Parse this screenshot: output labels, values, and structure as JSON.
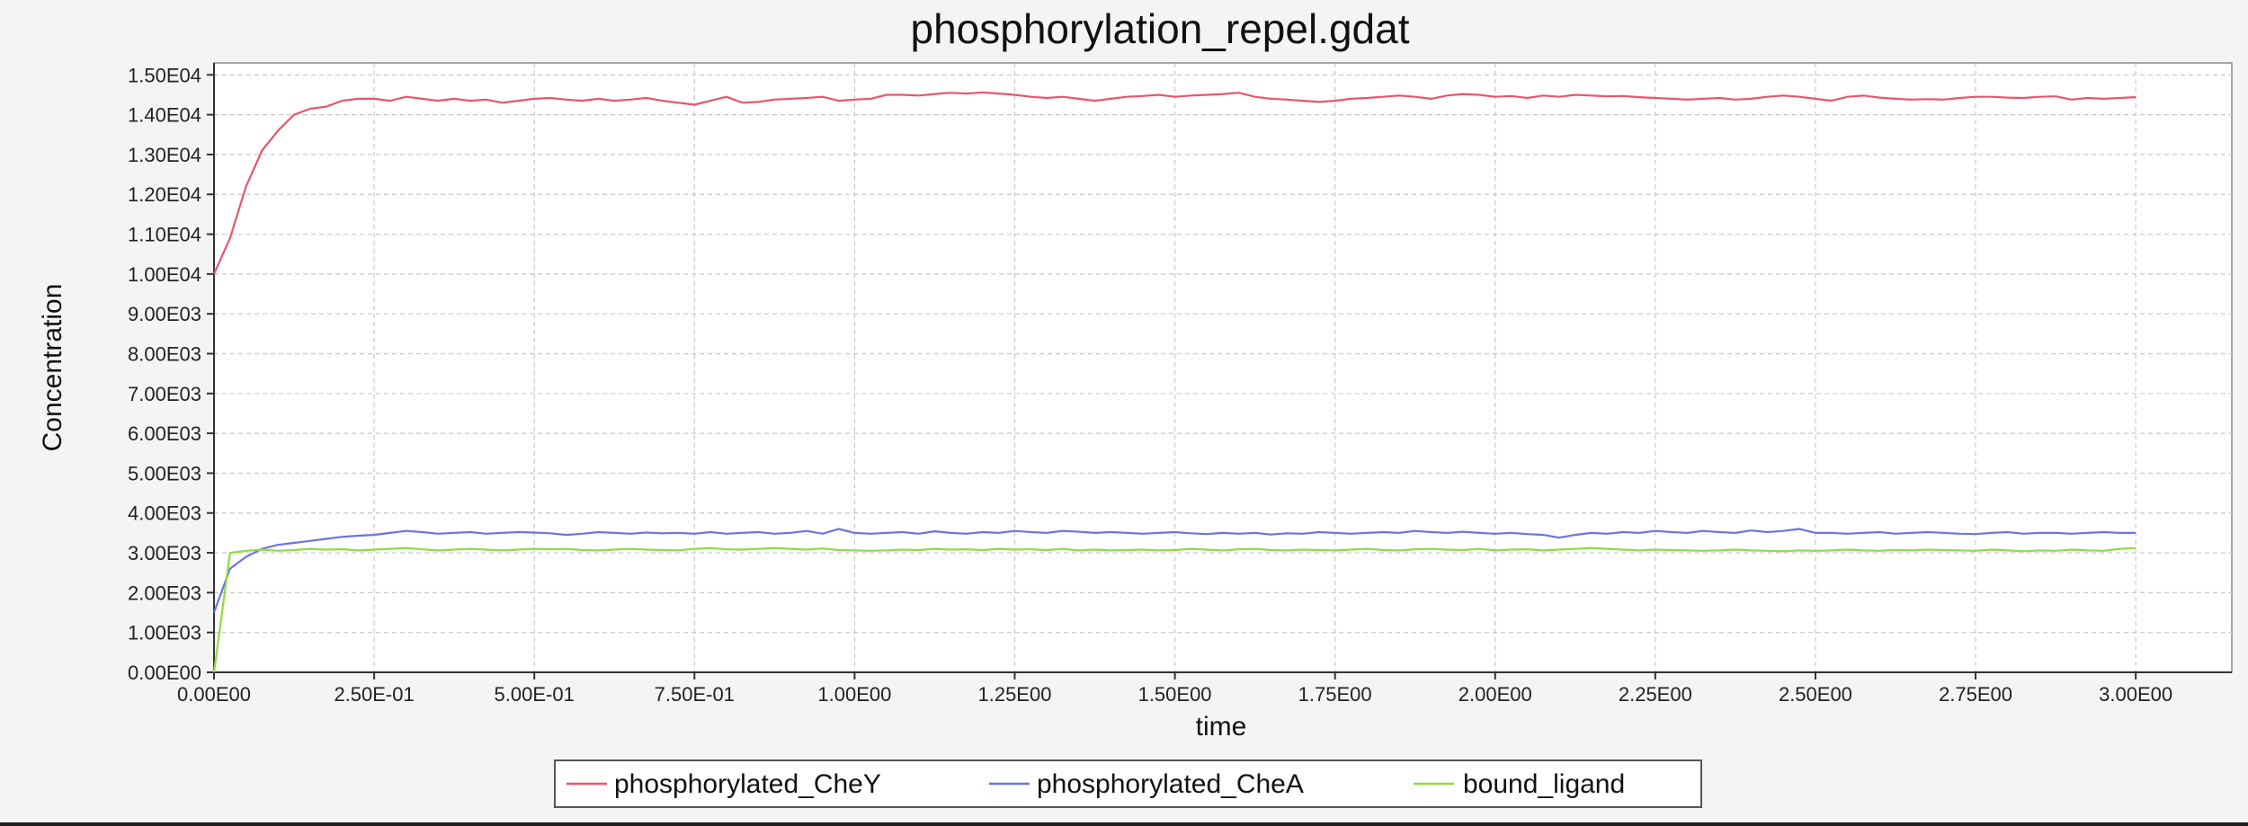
{
  "chart_data": {
    "type": "line",
    "title": "phosphorylation_repel.gdat",
    "xlabel": "time",
    "ylabel": "Concentration",
    "xlim": [
      0,
      3.15
    ],
    "ylim": [
      0,
      15300
    ],
    "grid": true,
    "legend_position": "bottom-center",
    "x_ticks": [
      0,
      0.25,
      0.5,
      0.75,
      1.0,
      1.25,
      1.5,
      1.75,
      2.0,
      2.25,
      2.5,
      2.75,
      3.0
    ],
    "x_tick_labels": [
      "0.00E00",
      "2.50E-01",
      "5.00E-01",
      "7.50E-01",
      "1.00E00",
      "1.25E00",
      "1.50E00",
      "1.75E00",
      "2.00E00",
      "2.25E00",
      "2.50E00",
      "2.75E00",
      "3.00E00"
    ],
    "y_ticks": [
      0,
      1000,
      2000,
      3000,
      4000,
      5000,
      6000,
      7000,
      8000,
      9000,
      10000,
      11000,
      12000,
      13000,
      14000,
      15000
    ],
    "y_tick_labels": [
      "0.00E00",
      "1.00E03",
      "2.00E03",
      "3.00E03",
      "4.00E03",
      "5.00E03",
      "6.00E03",
      "7.00E03",
      "8.00E03",
      "9.00E03",
      "1.00E04",
      "1.10E04",
      "1.20E04",
      "1.30E04",
      "1.40E04",
      "1.50E04"
    ],
    "x": [
      0,
      0.025,
      0.05,
      0.075,
      0.1,
      0.125,
      0.15,
      0.175,
      0.2,
      0.225,
      0.25,
      0.275,
      0.3,
      0.325,
      0.35,
      0.375,
      0.4,
      0.425,
      0.45,
      0.475,
      0.5,
      0.525,
      0.55,
      0.575,
      0.6,
      0.625,
      0.65,
      0.675,
      0.7,
      0.725,
      0.75,
      0.775,
      0.8,
      0.825,
      0.85,
      0.875,
      0.9,
      0.925,
      0.95,
      0.975,
      1.0,
      1.025,
      1.05,
      1.075,
      1.1,
      1.125,
      1.15,
      1.175,
      1.2,
      1.225,
      1.25,
      1.275,
      1.3,
      1.325,
      1.35,
      1.375,
      1.4,
      1.425,
      1.45,
      1.475,
      1.5,
      1.525,
      1.55,
      1.575,
      1.6,
      1.625,
      1.65,
      1.675,
      1.7,
      1.725,
      1.75,
      1.775,
      1.8,
      1.825,
      1.85,
      1.875,
      1.9,
      1.925,
      1.95,
      1.975,
      2.0,
      2.025,
      2.05,
      2.075,
      2.1,
      2.125,
      2.15,
      2.175,
      2.2,
      2.225,
      2.25,
      2.275,
      2.3,
      2.325,
      2.35,
      2.375,
      2.4,
      2.425,
      2.45,
      2.475,
      2.5,
      2.525,
      2.55,
      2.575,
      2.6,
      2.625,
      2.65,
      2.675,
      2.7,
      2.725,
      2.75,
      2.775,
      2.8,
      2.825,
      2.85,
      2.875,
      2.9,
      2.925,
      2.95,
      2.975,
      3.0
    ],
    "series": [
      {
        "name": "phosphorylated_CheY",
        "color": "#e8566b",
        "values": [
          10000,
          10900,
          12200,
          13100,
          13600,
          14000,
          14150,
          14200,
          14350,
          14400,
          14400,
          14350,
          14450,
          14400,
          14350,
          14400,
          14350,
          14380,
          14300,
          14350,
          14400,
          14420,
          14380,
          14350,
          14400,
          14350,
          14380,
          14420,
          14350,
          14300,
          14250,
          14350,
          14450,
          14300,
          14320,
          14380,
          14400,
          14420,
          14450,
          14350,
          14380,
          14400,
          14500,
          14500,
          14480,
          14520,
          14550,
          14530,
          14560,
          14530,
          14500,
          14450,
          14420,
          14450,
          14400,
          14350,
          14400,
          14450,
          14470,
          14500,
          14450,
          14480,
          14500,
          14520,
          14550,
          14450,
          14400,
          14380,
          14350,
          14320,
          14350,
          14400,
          14420,
          14450,
          14480,
          14450,
          14400,
          14480,
          14520,
          14500,
          14450,
          14470,
          14420,
          14480,
          14450,
          14500,
          14480,
          14460,
          14470,
          14440,
          14420,
          14400,
          14380,
          14400,
          14420,
          14380,
          14400,
          14450,
          14480,
          14450,
          14400,
          14350,
          14450,
          14480,
          14430,
          14400,
          14380,
          14390,
          14380,
          14420,
          14450,
          14450,
          14430,
          14420,
          14450,
          14460,
          14380,
          14420,
          14400,
          14420,
          14440
        ]
      },
      {
        "name": "phosphorylated_CheA",
        "color": "#6a75e0",
        "values": [
          1500,
          2600,
          2900,
          3100,
          3200,
          3250,
          3300,
          3350,
          3400,
          3430,
          3450,
          3500,
          3550,
          3520,
          3480,
          3500,
          3520,
          3480,
          3500,
          3520,
          3510,
          3490,
          3450,
          3480,
          3520,
          3500,
          3480,
          3510,
          3490,
          3500,
          3480,
          3520,
          3480,
          3500,
          3520,
          3480,
          3500,
          3550,
          3480,
          3600,
          3500,
          3480,
          3500,
          3520,
          3480,
          3540,
          3500,
          3480,
          3520,
          3500,
          3550,
          3520,
          3500,
          3550,
          3530,
          3500,
          3520,
          3500,
          3480,
          3500,
          3520,
          3490,
          3470,
          3500,
          3480,
          3500,
          3460,
          3490,
          3480,
          3520,
          3500,
          3480,
          3500,
          3520,
          3500,
          3550,
          3520,
          3500,
          3530,
          3500,
          3480,
          3500,
          3470,
          3450,
          3380,
          3450,
          3500,
          3480,
          3520,
          3500,
          3550,
          3520,
          3500,
          3550,
          3520,
          3500,
          3560,
          3520,
          3550,
          3600,
          3500,
          3500,
          3480,
          3500,
          3520,
          3480,
          3500,
          3520,
          3500,
          3480,
          3470,
          3500,
          3520,
          3480,
          3500,
          3500,
          3480,
          3500,
          3520,
          3500,
          3500
        ]
      },
      {
        "name": "bound_ligand",
        "color": "#8fdc45",
        "values": [
          0,
          3000,
          3050,
          3080,
          3050,
          3070,
          3100,
          3080,
          3090,
          3060,
          3080,
          3100,
          3120,
          3090,
          3060,
          3080,
          3100,
          3080,
          3060,
          3080,
          3100,
          3090,
          3100,
          3070,
          3060,
          3080,
          3100,
          3080,
          3070,
          3060,
          3100,
          3120,
          3090,
          3080,
          3100,
          3120,
          3100,
          3080,
          3110,
          3070,
          3060,
          3050,
          3060,
          3080,
          3070,
          3100,
          3080,
          3090,
          3070,
          3100,
          3080,
          3090,
          3070,
          3100,
          3060,
          3080,
          3060,
          3070,
          3080,
          3060,
          3070,
          3100,
          3080,
          3060,
          3090,
          3100,
          3070,
          3060,
          3080,
          3070,
          3060,
          3080,
          3100,
          3070,
          3060,
          3090,
          3100,
          3080,
          3070,
          3100,
          3060,
          3080,
          3090,
          3060,
          3080,
          3100,
          3120,
          3100,
          3080,
          3060,
          3080,
          3070,
          3060,
          3050,
          3060,
          3080,
          3060,
          3050,
          3040,
          3060,
          3050,
          3060,
          3080,
          3060,
          3050,
          3070,
          3060,
          3080,
          3070,
          3060,
          3050,
          3080,
          3060,
          3040,
          3060,
          3050,
          3080,
          3060,
          3050,
          3100,
          3120
        ]
      }
    ]
  }
}
